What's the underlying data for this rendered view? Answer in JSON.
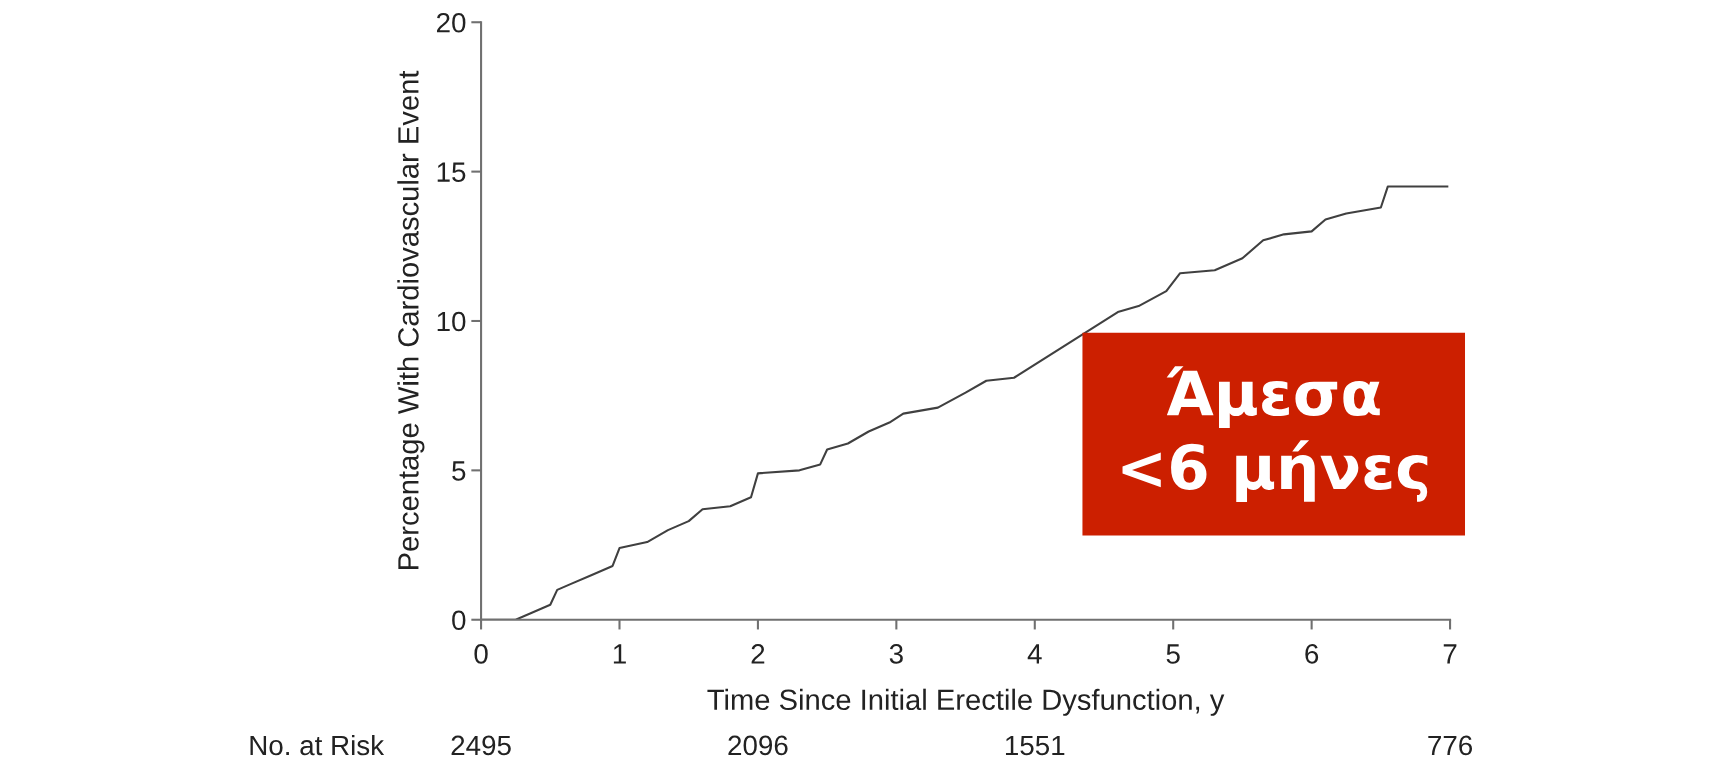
{
  "chart_data": {
    "type": "line",
    "ylabel": "Percentage With Cardiovascular Event",
    "xlabel": "Time Since Initial Erectile Dysfunction, y",
    "x": [
      0,
      0.25,
      0.35,
      0.5,
      0.55,
      0.65,
      0.8,
      0.95,
      1.0,
      1.2,
      1.35,
      1.5,
      1.6,
      1.8,
      1.95,
      2.0,
      2.3,
      2.45,
      2.5,
      2.65,
      2.8,
      2.95,
      3.05,
      3.3,
      3.5,
      3.65,
      3.85,
      4.5,
      4.6,
      4.75,
      4.95,
      5.05,
      5.3,
      5.5,
      5.65,
      5.8,
      6.0,
      6.1,
      6.25,
      6.5,
      6.55,
      6.98
    ],
    "series": [
      {
        "color": "#404040",
        "values": [
          0,
          0,
          0.2,
          0.5,
          1.0,
          1.2,
          1.5,
          1.8,
          2.4,
          2.6,
          3.0,
          3.3,
          3.7,
          3.8,
          4.1,
          4.9,
          5.0,
          5.2,
          5.7,
          5.9,
          6.3,
          6.6,
          6.9,
          7.1,
          7.6,
          8.0,
          8.1,
          10.0,
          10.3,
          10.5,
          11.0,
          11.6,
          11.7,
          12.1,
          12.7,
          12.9,
          13.0,
          13.4,
          13.6,
          13.8,
          14.5,
          14.5
        ]
      }
    ],
    "xlim": [
      0,
      7
    ],
    "xticks": [
      0,
      1,
      2,
      3,
      4,
      5,
      6,
      7
    ],
    "ylim": [
      0,
      20
    ],
    "yticks": [
      0,
      5,
      10,
      15,
      20
    ],
    "grid": false,
    "annotations": [
      "No. at Risk",
      "2495",
      "2096",
      "1551",
      "776",
      "Άμεσα\n<6 μήνες"
    ]
  }
}
